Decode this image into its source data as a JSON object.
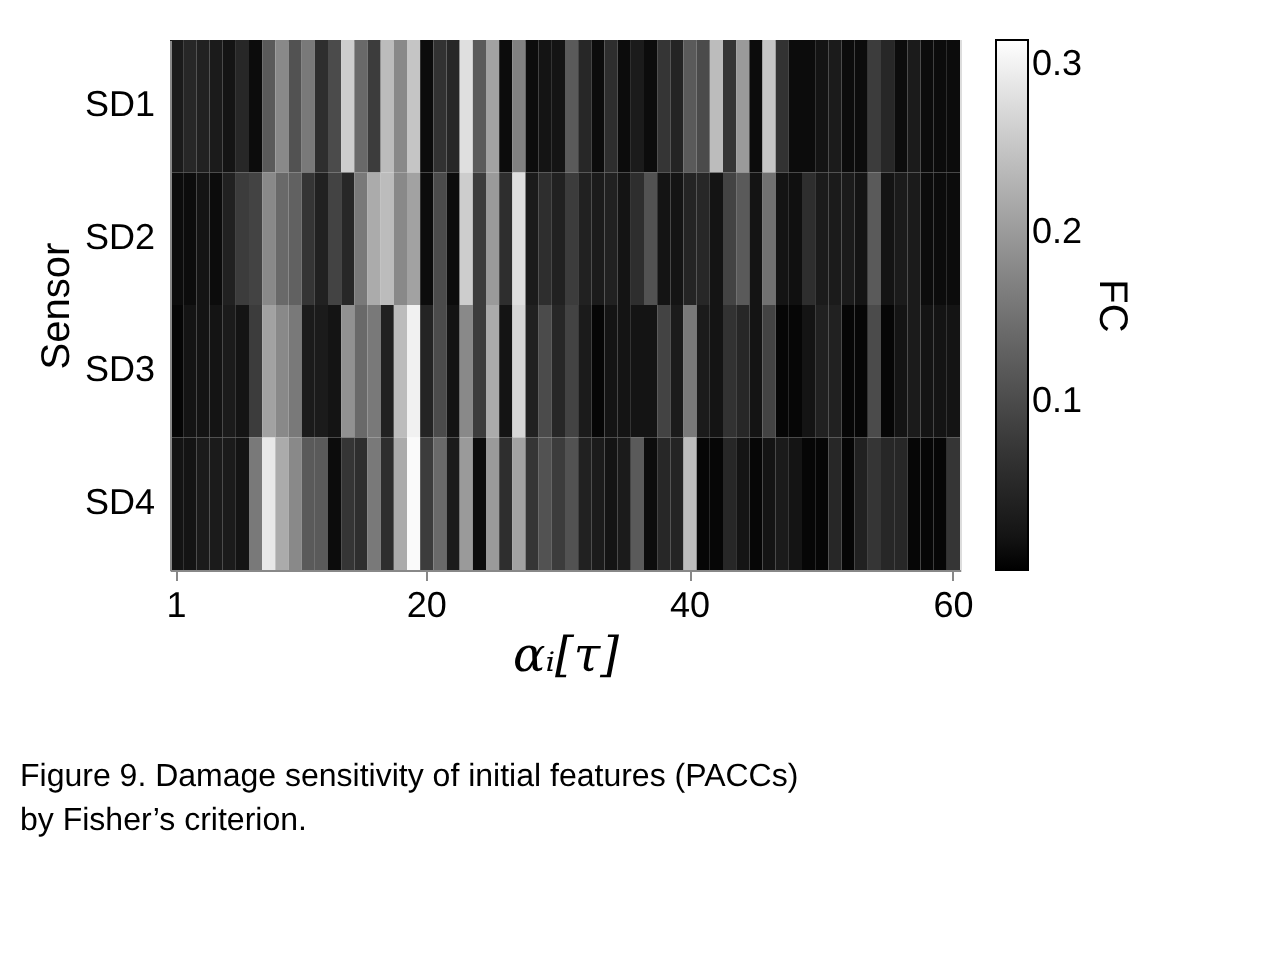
{
  "chart_data": {
    "type": "heatmap",
    "categories": [
      "1",
      null,
      null,
      null,
      null,
      null,
      null,
      null,
      null,
      null,
      null,
      null,
      null,
      null,
      null,
      null,
      null,
      null,
      null,
      "20",
      null,
      null,
      null,
      null,
      null,
      null,
      null,
      null,
      null,
      null,
      null,
      null,
      null,
      null,
      null,
      null,
      null,
      null,
      null,
      "40",
      null,
      null,
      null,
      null,
      null,
      null,
      null,
      null,
      null,
      null,
      null,
      null,
      null,
      null,
      null,
      null,
      null,
      null,
      null,
      "60"
    ],
    "y_categories": [
      "SD1",
      "SD2",
      "SD3",
      "SD4"
    ],
    "cells": [
      [
        0.03,
        0.05,
        0.04,
        0.03,
        0.02,
        0.05,
        0.01,
        0.12,
        0.18,
        0.11,
        0.16,
        0.06,
        0.1,
        0.26,
        0.14,
        0.08,
        0.24,
        0.18,
        0.25,
        0.01,
        0.065,
        0.05,
        0.28,
        0.12,
        0.21,
        0.01,
        0.17,
        0.01,
        0.02,
        0.02,
        0.12,
        0.05,
        0.01,
        0.06,
        0.01,
        0.03,
        0.01,
        0.07,
        0.045,
        0.12,
        0.1,
        0.24,
        0.07,
        0.2,
        0.01,
        0.25,
        0.065,
        0.01,
        0.01,
        0.02,
        0.03,
        0.01,
        0.01,
        0.08,
        0.05,
        0.01,
        0.03,
        0.01,
        0.01,
        0.01
      ],
      [
        0.01,
        0.01,
        0.02,
        0.01,
        0.04,
        0.08,
        0.09,
        0.18,
        0.14,
        0.13,
        0.07,
        0.04,
        0.09,
        0.05,
        0.16,
        0.22,
        0.24,
        0.18,
        0.21,
        0.01,
        0.1,
        0.01,
        0.26,
        0.08,
        0.2,
        0.06,
        0.28,
        0.03,
        0.06,
        0.04,
        0.08,
        0.04,
        0.03,
        0.04,
        0.02,
        0.06,
        0.11,
        0.02,
        0.02,
        0.045,
        0.05,
        0.02,
        0.09,
        0.12,
        0.02,
        0.15,
        0.02,
        0.015,
        0.06,
        0.03,
        0.03,
        0.03,
        0.02,
        0.12,
        0.02,
        0.03,
        0.03,
        0.01,
        0.01,
        0.01
      ],
      [
        0.005,
        0.02,
        0.02,
        0.02,
        0.03,
        0.02,
        0.08,
        0.21,
        0.18,
        0.16,
        0.03,
        0.03,
        0.02,
        0.19,
        0.14,
        0.16,
        0.04,
        0.24,
        0.3,
        0.045,
        0.1,
        0.02,
        0.18,
        0.08,
        0.22,
        0.02,
        0.27,
        0.04,
        0.1,
        0.05,
        0.09,
        0.03,
        0.005,
        0.02,
        0.02,
        0.02,
        0.02,
        0.09,
        0.03,
        0.16,
        0.03,
        0.02,
        0.065,
        0.05,
        0.02,
        0.09,
        0.005,
        0.005,
        0.02,
        0.04,
        0.04,
        0.005,
        0.005,
        0.1,
        0.005,
        0.02,
        0.03,
        0.02,
        0.02,
        0.02
      ],
      [
        0.02,
        0.02,
        0.03,
        0.03,
        0.03,
        0.02,
        0.16,
        0.29,
        0.22,
        0.18,
        0.12,
        0.12,
        0.01,
        0.07,
        0.06,
        0.16,
        0.06,
        0.22,
        0.31,
        0.08,
        0.14,
        0.03,
        0.2,
        0.01,
        0.2,
        0.06,
        0.21,
        0.07,
        0.11,
        0.08,
        0.11,
        0.04,
        0.03,
        0.02,
        0.03,
        0.12,
        0.01,
        0.05,
        0.045,
        0.24,
        0.005,
        0.005,
        0.05,
        0.02,
        0.005,
        0.02,
        0.03,
        0.02,
        0.005,
        0.005,
        0.05,
        0.005,
        0.04,
        0.07,
        0.05,
        0.05,
        0.005,
        0.005,
        0.005,
        0.07
      ]
    ],
    "xlabel": "αᵢ[τ]",
    "ylabel": "Sensor",
    "clabel": "FC",
    "clim": [
      0.0,
      0.315
    ],
    "cticks": [
      0.1,
      0.2,
      0.3
    ],
    "colors": [
      "#000000",
      "#ffffff"
    ],
    "annotations": [
      "Figure 9. Damage sensitivity of initial features (PACCs) by Fisher’s criterion."
    ]
  }
}
